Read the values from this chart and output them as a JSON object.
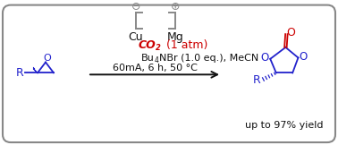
{
  "background_color": "#ffffff",
  "border_color": "#999999",
  "blue": "#2222cc",
  "red": "#cc0000",
  "black": "#111111",
  "gray": "#888888",
  "electrode_minus": "⊖",
  "electrode_plus": "⊕",
  "yield_text": "up to 97% yield",
  "co2_line": "CO",
  "co2_sub": "2",
  "co2_suffix": " (1 atm)",
  "cond1a": "Bu",
  "cond1_sub": "4",
  "cond1b": "NBr (1.0 eq.), MeCN",
  "cond2": "60mA, 6 h, 50 °C",
  "fig_width": 3.78,
  "fig_height": 1.62,
  "dpi": 100
}
